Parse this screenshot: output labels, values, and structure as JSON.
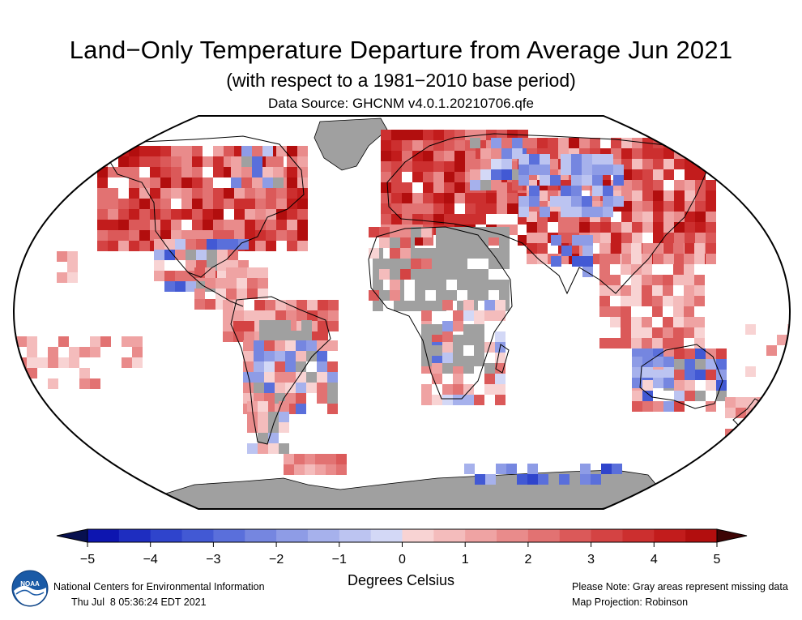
{
  "header": {
    "title": "Land−Only Temperature Departure from Average Jun 2021",
    "subtitle": "(with respect to a 1981−2010 base period)",
    "source": "Data Source: GHCNM v4.0.1.20210706.qfe"
  },
  "legend": {
    "ticks": [
      "−5",
      "−4",
      "−3",
      "−2",
      "−1",
      "0",
      "1",
      "2",
      "3",
      "4",
      "5"
    ],
    "units": "Degrees Celsius",
    "cold_colors": [
      "#0d15b0",
      "#1e2dc0",
      "#2f44cc",
      "#4259d4",
      "#5a6fdb",
      "#7586e0",
      "#8e9ce6",
      "#a6b1ec",
      "#bcc4f1",
      "#d3d8f6"
    ],
    "warm_colors": [
      "#f8d3d3",
      "#f4bcbc",
      "#efa3a3",
      "#e98b8b",
      "#e27272",
      "#db5959",
      "#d44343",
      "#cc2f2f",
      "#c21c1c",
      "#b20e0e"
    ],
    "low_arrow_color": "#07104f",
    "high_arrow_color": "#3d0505"
  },
  "footer": {
    "organization": "National Centers for Environmental Information",
    "timestamp": "Thu Jul  8 05:36:24 EDT 2021",
    "note": "Please Note: Gray areas represent missing data",
    "projection": "Map Projection: Robinson"
  },
  "logo": {
    "text": "NOAA"
  },
  "colors": {
    "missing": "#a0a0a0",
    "ocean": "#ffffff",
    "border": "#000000"
  }
}
